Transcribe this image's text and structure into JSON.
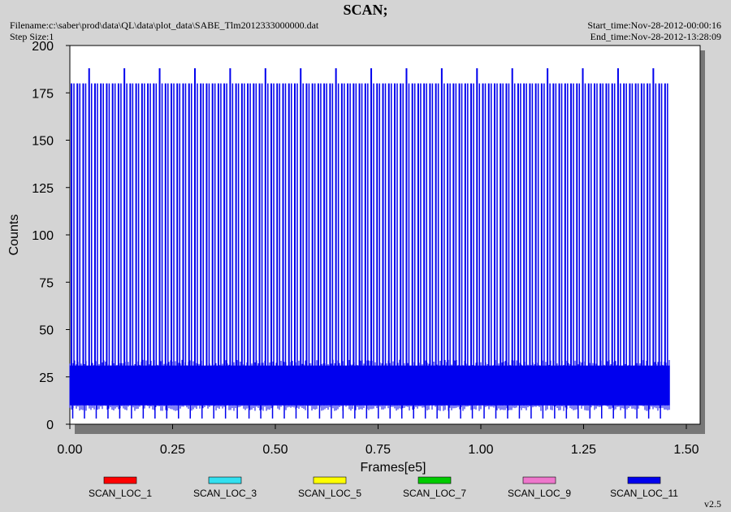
{
  "chart_data": {
    "type": "line",
    "title": "SCAN;",
    "xlabel": "Frames[e5]",
    "ylabel": "Counts",
    "xlim": [
      0,
      1.5
    ],
    "ylim": [
      0,
      200
    ],
    "x_ticks": [
      "0.00",
      "0.25",
      "0.50",
      "0.75",
      "1.00",
      "1.25",
      "1.50"
    ],
    "y_ticks": [
      "0",
      "25",
      "50",
      "75",
      "100",
      "125",
      "150",
      "175",
      "200"
    ],
    "grid": false,
    "legend_position": "bottom",
    "series": [
      {
        "name": "SCAN_LOC_1",
        "color": "#ff0000",
        "values": []
      },
      {
        "name": "SCAN_LOC_3",
        "color": "#33e0f0",
        "values": []
      },
      {
        "name": "SCAN_LOC_5",
        "color": "#ffff00",
        "values": []
      },
      {
        "name": "SCAN_LOC_7",
        "color": "#00cc00",
        "values": []
      },
      {
        "name": "SCAN_LOC_9",
        "color": "#ee77cc",
        "values": []
      },
      {
        "name": "SCAN_LOC_11",
        "color": "#0000ee",
        "description_values": {
          "x_range": [
            0.0,
            1.46
          ],
          "baseline_band": [
            10,
            31
          ],
          "spike_levels": [
            180,
            188
          ],
          "minimum": 3
        }
      }
    ]
  },
  "header": {
    "filename": "Filename:c:\\saber\\prod\\data\\QL\\data\\plot_data\\SABE_Tlm2012333000000.dat",
    "step_size": "Step Size:1",
    "start_time": "Start_time:Nov-28-2012-00:00:16",
    "end_time": "End_time:Nov-28-2012-13:28:09"
  },
  "version": "v2.5"
}
